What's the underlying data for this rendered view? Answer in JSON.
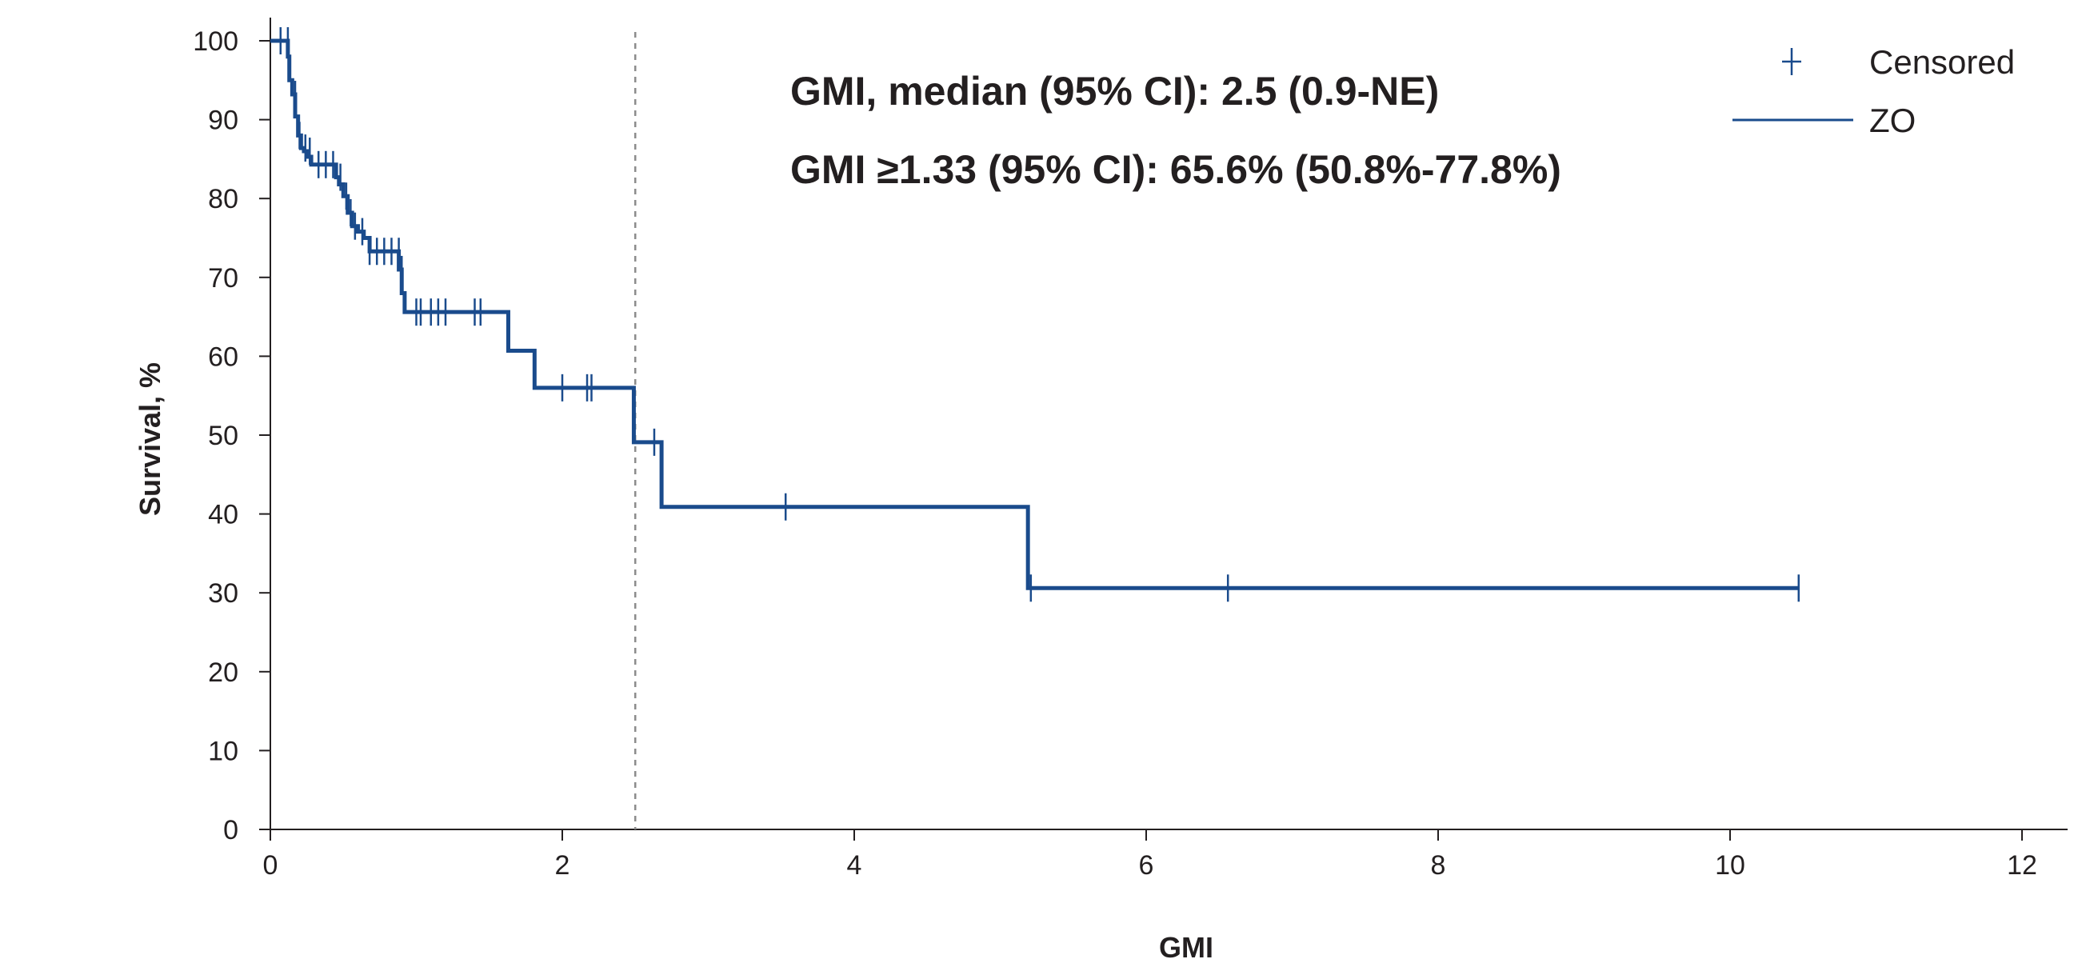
{
  "chart_data": {
    "type": "line",
    "step": true,
    "xlabel": "GMI",
    "ylabel": "Survival, %",
    "xlim": [
      0,
      12
    ],
    "ylim": [
      0,
      100
    ],
    "xticks": [
      0,
      2,
      4,
      6,
      8,
      10,
      12
    ],
    "yticks": [
      0,
      10,
      20,
      30,
      40,
      50,
      60,
      70,
      80,
      90,
      100
    ],
    "grid": false,
    "legend_position": "top-right",
    "legend": [
      {
        "label": "Censored",
        "marker": "plus"
      },
      {
        "label": "ZO",
        "marker": "line"
      }
    ],
    "annotations": [
      "GMI, median (95% CI): 2.5 (0.9-NE)",
      "GMI ≥1.33 (95% CI): 65.6% (50.8%-77.8%)"
    ],
    "reference_line_x": 2.5,
    "series": [
      {
        "name": "ZO",
        "color": "#1a4b8c",
        "x": [
          0,
          0.12,
          0.13,
          0.15,
          0.17,
          0.19,
          0.21,
          0.23,
          0.25,
          0.28,
          0.31,
          0.45,
          0.47,
          0.5,
          0.53,
          0.56,
          0.6,
          0.64,
          0.68,
          0.88,
          0.9,
          0.92,
          1.63,
          1.81,
          2.49,
          2.68,
          5.19,
          10.47
        ],
        "y": [
          100,
          98,
          95,
          93.2,
          90.4,
          88,
          86.4,
          86,
          85.3,
          84.3,
          84.3,
          82.7,
          81.8,
          80.3,
          78.2,
          76.5,
          75.8,
          75,
          73.3,
          71,
          68,
          65.6,
          60.7,
          56,
          49.1,
          40.9,
          30.6,
          30.6
        ]
      }
    ],
    "censored": {
      "x": [
        0.07,
        0.12,
        0.17,
        0.2,
        0.24,
        0.27,
        0.33,
        0.38,
        0.43,
        0.48,
        0.52,
        0.55,
        0.58,
        0.63,
        0.68,
        0.73,
        0.78,
        0.83,
        0.88,
        0.9,
        1.0,
        1.03,
        1.1,
        1.15,
        1.2,
        1.4,
        1.44,
        2.0,
        2.17,
        2.2,
        2.63,
        3.53,
        5.21,
        6.56,
        10.47
      ],
      "y": [
        100,
        100,
        93.2,
        88,
        86.4,
        86,
        84.3,
        84.3,
        84.3,
        82.7,
        80.3,
        78.2,
        76.5,
        75.8,
        73.3,
        73.3,
        73.3,
        73.3,
        73.3,
        71,
        65.6,
        65.6,
        65.6,
        65.6,
        65.6,
        65.6,
        65.6,
        56,
        56,
        56,
        49.1,
        40.9,
        30.6,
        30.6,
        30.6
      ]
    }
  }
}
